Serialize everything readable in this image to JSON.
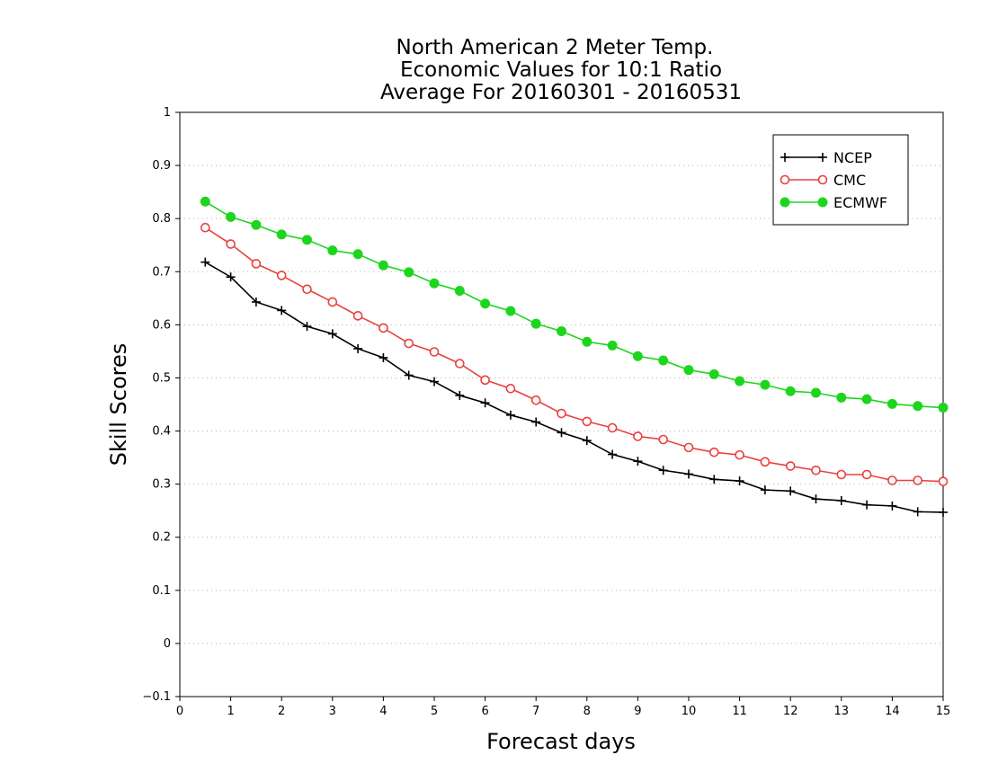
{
  "chart_data": {
    "type": "line",
    "title_lines": [
      "North American 2 Meter Temp.",
      "Economic Values for 10:1 Ratio",
      "Average For 20160301 - 20160531"
    ],
    "xlabel": "Forecast days",
    "ylabel": "Skill Scores",
    "xlim": [
      0,
      15
    ],
    "ylim": [
      -0.1,
      1
    ],
    "xticks": [
      "0",
      "1",
      "2",
      "3",
      "4",
      "5",
      "6",
      "7",
      "8",
      "9",
      "10",
      "11",
      "12",
      "13",
      "14",
      "15"
    ],
    "yticks": [
      "−0.1",
      "0",
      "0.1",
      "0.2",
      "0.3",
      "0.4",
      "0.5",
      "0.6",
      "0.7",
      "0.8",
      "0.9",
      "1"
    ],
    "grid": "horizontal dotted",
    "legend_position": "top-right",
    "x": [
      0.5,
      1,
      1.5,
      2,
      2.5,
      3,
      3.5,
      4,
      4.5,
      5,
      5.5,
      6,
      6.5,
      7,
      7.5,
      8,
      8.5,
      9,
      9.5,
      10,
      10.5,
      11,
      11.5,
      12,
      12.5,
      13,
      13.5,
      14,
      14.5,
      15
    ],
    "series": [
      {
        "name": "NCEP",
        "color": "#000000",
        "marker": "plus",
        "values": [
          0.718,
          0.69,
          0.643,
          0.627,
          0.597,
          0.583,
          0.555,
          0.538,
          0.505,
          0.493,
          0.467,
          0.453,
          0.43,
          0.417,
          0.397,
          0.382,
          0.356,
          0.343,
          0.326,
          0.319,
          0.309,
          0.306,
          0.289,
          0.287,
          0.272,
          0.269,
          0.261,
          0.259,
          0.248,
          0.247
        ]
      },
      {
        "name": "CMC",
        "color": "#e8413e",
        "marker": "open-circle",
        "values": [
          0.783,
          0.752,
          0.715,
          0.693,
          0.667,
          0.643,
          0.617,
          0.594,
          0.565,
          0.549,
          0.527,
          0.496,
          0.48,
          0.458,
          0.433,
          0.418,
          0.406,
          0.39,
          0.384,
          0.369,
          0.36,
          0.355,
          0.342,
          0.334,
          0.326,
          0.318,
          0.318,
          0.307,
          0.307,
          0.305
        ]
      },
      {
        "name": "ECMWF",
        "color": "#1ed51e",
        "marker": "filled-circle",
        "values": [
          0.832,
          0.803,
          0.788,
          0.77,
          0.76,
          0.74,
          0.733,
          0.712,
          0.699,
          0.678,
          0.664,
          0.64,
          0.626,
          0.602,
          0.588,
          0.568,
          0.561,
          0.541,
          0.533,
          0.515,
          0.507,
          0.494,
          0.487,
          0.475,
          0.472,
          0.463,
          0.46,
          0.451,
          0.447,
          0.444
        ]
      }
    ]
  }
}
